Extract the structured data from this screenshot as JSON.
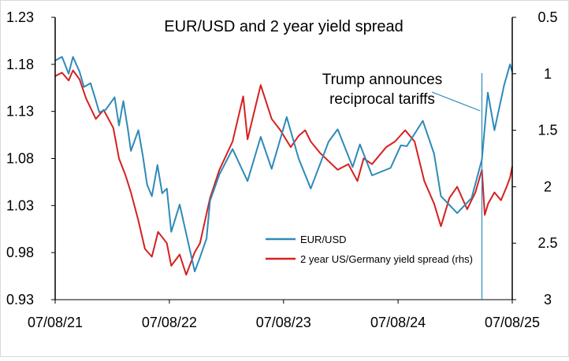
{
  "chart_data": {
    "type": "line",
    "title": "EUR/USD and 2 year yield spread",
    "x_ticks": [
      "07/08/21",
      "07/08/22",
      "07/08/23",
      "07/08/24",
      "07/08/25"
    ],
    "x_range": [
      "07/08/21",
      "07/08/25"
    ],
    "left_axis": {
      "ylim": [
        0.93,
        1.23
      ],
      "ticks": [
        "1.23",
        "1.18",
        "1.13",
        "1.08",
        "1.03",
        "0.98",
        "0.93"
      ]
    },
    "right_axis": {
      "ylim": [
        3,
        0.5
      ],
      "inverted": true,
      "ticks": [
        "0.5",
        "1",
        "1.5",
        "2",
        "2.5",
        "3"
      ]
    },
    "legend": {
      "placement": "center-right"
    },
    "grid": false,
    "annotation": {
      "line1": "Trump announces",
      "line2": "reciprocal tariffs",
      "date": "2025-04-02"
    },
    "series": [
      {
        "name": "EUR/USD",
        "axis": "left",
        "color": "#2E8AB8",
        "points": [
          [
            "2021-07-08",
            1.184
          ],
          [
            "2021-07-30",
            1.188
          ],
          [
            "2021-08-20",
            1.17
          ],
          [
            "2021-09-03",
            1.188
          ],
          [
            "2021-09-24",
            1.172
          ],
          [
            "2021-10-08",
            1.156
          ],
          [
            "2021-10-29",
            1.16
          ],
          [
            "2021-11-12",
            1.145
          ],
          [
            "2021-11-26",
            1.129
          ],
          [
            "2021-12-17",
            1.132
          ],
          [
            "2022-01-14",
            1.145
          ],
          [
            "2022-01-28",
            1.115
          ],
          [
            "2022-02-11",
            1.141
          ],
          [
            "2022-02-25",
            1.112
          ],
          [
            "2022-03-07",
            1.088
          ],
          [
            "2022-03-31",
            1.11
          ],
          [
            "2022-04-14",
            1.083
          ],
          [
            "2022-04-28",
            1.052
          ],
          [
            "2022-05-13",
            1.04
          ],
          [
            "2022-05-31",
            1.073
          ],
          [
            "2022-06-15",
            1.043
          ],
          [
            "2022-06-30",
            1.048
          ],
          [
            "2022-07-14",
            1.002
          ],
          [
            "2022-08-10",
            1.031
          ],
          [
            "2022-08-31",
            1.0
          ],
          [
            "2022-09-27",
            0.96
          ],
          [
            "2022-10-14",
            0.975
          ],
          [
            "2022-11-04",
            0.995
          ],
          [
            "2022-11-15",
            1.035
          ],
          [
            "2022-12-15",
            1.063
          ],
          [
            "2023-01-26",
            1.09
          ],
          [
            "2023-03-15",
            1.056
          ],
          [
            "2023-04-26",
            1.103
          ],
          [
            "2023-05-31",
            1.069
          ],
          [
            "2023-07-18",
            1.124
          ],
          [
            "2023-08-25",
            1.08
          ],
          [
            "2023-10-03",
            1.048
          ],
          [
            "2023-11-29",
            1.098
          ],
          [
            "2023-12-28",
            1.111
          ],
          [
            "2024-02-14",
            1.071
          ],
          [
            "2024-03-08",
            1.095
          ],
          [
            "2024-04-16",
            1.062
          ],
          [
            "2024-06-14",
            1.07
          ],
          [
            "2024-07-17",
            1.094
          ],
          [
            "2024-08-05",
            1.093
          ],
          [
            "2024-09-25",
            1.12
          ],
          [
            "2024-10-31",
            1.085
          ],
          [
            "2024-11-22",
            1.04
          ],
          [
            "2025-01-13",
            1.022
          ],
          [
            "2025-02-28",
            1.038
          ],
          [
            "2025-04-02",
            1.079
          ],
          [
            "2025-04-21",
            1.15
          ],
          [
            "2025-05-12",
            1.11
          ],
          [
            "2025-06-12",
            1.158
          ],
          [
            "2025-07-01",
            1.18
          ],
          [
            "2025-07-08",
            1.172
          ]
        ]
      },
      {
        "name": "2 year US/Germany yield spread (rhs)",
        "axis": "right",
        "color": "#D62020",
        "points": [
          [
            "2021-07-08",
            1.02
          ],
          [
            "2021-07-30",
            0.99
          ],
          [
            "2021-08-20",
            1.06
          ],
          [
            "2021-09-03",
            0.97
          ],
          [
            "2021-09-24",
            1.05
          ],
          [
            "2021-10-15",
            1.22
          ],
          [
            "2021-11-15",
            1.4
          ],
          [
            "2021-12-10",
            1.32
          ],
          [
            "2022-01-10",
            1.48
          ],
          [
            "2022-01-28",
            1.75
          ],
          [
            "2022-02-18",
            1.9
          ],
          [
            "2022-03-07",
            2.05
          ],
          [
            "2022-03-31",
            2.3
          ],
          [
            "2022-04-21",
            2.55
          ],
          [
            "2022-05-13",
            2.62
          ],
          [
            "2022-06-02",
            2.4
          ],
          [
            "2022-06-30",
            2.5
          ],
          [
            "2022-07-14",
            2.7
          ],
          [
            "2022-08-10",
            2.6
          ],
          [
            "2022-08-31",
            2.78
          ],
          [
            "2022-09-27",
            2.58
          ],
          [
            "2022-10-14",
            2.5
          ],
          [
            "2022-11-15",
            2.1
          ],
          [
            "2022-12-15",
            1.85
          ],
          [
            "2023-01-26",
            1.6
          ],
          [
            "2023-03-01",
            1.2
          ],
          [
            "2023-03-15",
            1.58
          ],
          [
            "2023-04-26",
            1.1
          ],
          [
            "2023-05-31",
            1.4
          ],
          [
            "2023-06-28",
            1.5
          ],
          [
            "2023-07-31",
            1.65
          ],
          [
            "2023-08-25",
            1.55
          ],
          [
            "2023-09-15",
            1.5
          ],
          [
            "2023-10-03",
            1.6
          ],
          [
            "2023-11-01",
            1.7
          ],
          [
            "2023-12-28",
            1.85
          ],
          [
            "2024-01-31",
            1.8
          ],
          [
            "2024-02-29",
            1.95
          ],
          [
            "2024-03-20",
            1.75
          ],
          [
            "2024-04-16",
            1.8
          ],
          [
            "2024-05-31",
            1.65
          ],
          [
            "2024-06-28",
            1.6
          ],
          [
            "2024-07-31",
            1.5
          ],
          [
            "2024-08-30",
            1.6
          ],
          [
            "2024-09-30",
            1.95
          ],
          [
            "2024-10-31",
            2.15
          ],
          [
            "2024-11-22",
            2.35
          ],
          [
            "2024-12-19",
            2.1
          ],
          [
            "2025-01-13",
            2.0
          ],
          [
            "2025-02-14",
            2.2
          ],
          [
            "2025-03-12",
            2.05
          ],
          [
            "2025-04-02",
            1.85
          ],
          [
            "2025-04-11",
            2.25
          ],
          [
            "2025-04-22",
            2.15
          ],
          [
            "2025-05-12",
            2.05
          ],
          [
            "2025-06-02",
            2.12
          ],
          [
            "2025-06-20",
            2.0
          ],
          [
            "2025-07-01",
            1.92
          ],
          [
            "2025-07-08",
            1.82
          ]
        ]
      }
    ]
  }
}
